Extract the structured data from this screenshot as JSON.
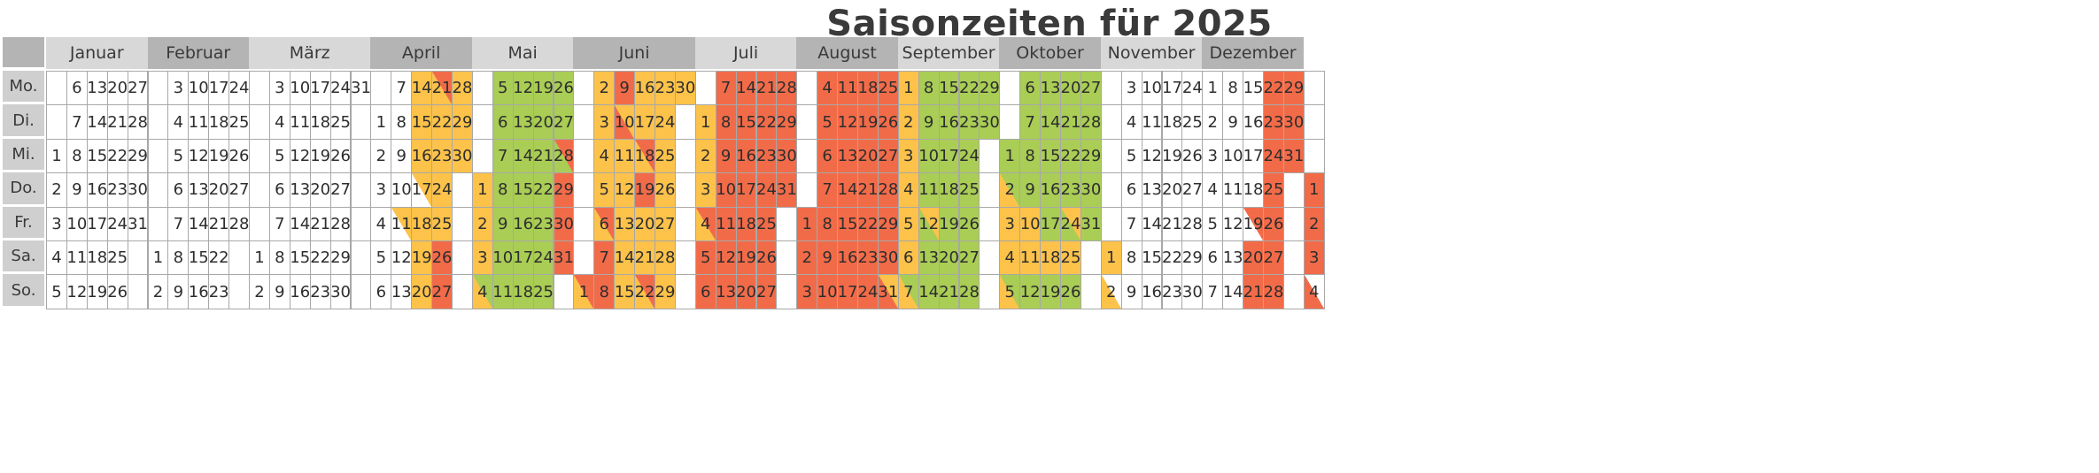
{
  "title": "Saisonzeiten für 2025",
  "day_labels": [
    "Mo.",
    "Di.",
    "Mi.",
    "Do.",
    "Fr.",
    "Sa.",
    "So."
  ],
  "colors": {
    "orange": "#f26b49",
    "yellow": "#fcc24a",
    "green": "#a9cd55",
    "white": "#ffffff",
    "header_dark": "#b4b4b4",
    "header_light": "#d8d8d8",
    "day_label_bg": "#cfcfcf",
    "grid_line": "#a8a8a8"
  },
  "months": [
    {
      "name": "Januar",
      "weeks": [
        [
          null,
          null,
          1,
          2,
          3,
          4,
          5
        ],
        [
          6,
          7,
          8,
          9,
          10,
          11,
          12
        ],
        [
          13,
          14,
          15,
          16,
          17,
          18,
          19
        ],
        [
          20,
          21,
          22,
          23,
          24,
          25,
          26
        ],
        [
          27,
          28,
          29,
          30,
          31,
          null,
          null
        ]
      ],
      "colors": []
    },
    {
      "name": "Februar",
      "weeks": [
        [
          null,
          null,
          null,
          null,
          null,
          1,
          2
        ],
        [
          3,
          4,
          5,
          6,
          7,
          8,
          9
        ],
        [
          10,
          11,
          12,
          13,
          14,
          15,
          16
        ],
        [
          17,
          18,
          19,
          20,
          21,
          22,
          23
        ],
        [
          24,
          25,
          26,
          27,
          28,
          null,
          null
        ]
      ],
      "colors": []
    },
    {
      "name": "März",
      "weeks": [
        [
          null,
          null,
          null,
          null,
          null,
          1,
          2
        ],
        [
          3,
          4,
          5,
          6,
          7,
          8,
          9
        ],
        [
          10,
          11,
          12,
          13,
          14,
          15,
          16
        ],
        [
          17,
          18,
          19,
          20,
          21,
          22,
          23
        ],
        [
          24,
          25,
          26,
          27,
          28,
          29,
          30
        ],
        [
          31,
          null,
          null,
          null,
          null,
          null,
          null
        ]
      ],
      "colors": []
    },
    {
      "name": "April",
      "weeks": [
        [
          null,
          1,
          2,
          3,
          4,
          5,
          6
        ],
        [
          7,
          8,
          9,
          10,
          11,
          12,
          13
        ],
        [
          14,
          15,
          16,
          17,
          18,
          19,
          20
        ],
        [
          21,
          22,
          23,
          24,
          25,
          26,
          27
        ],
        [
          28,
          29,
          30,
          null,
          null,
          null,
          null
        ]
      ],
      "colors": [
        [
          null,
          null,
          null,
          null,
          null,
          null,
          null
        ],
        [
          null,
          null,
          null,
          null,
          "W/Y",
          null,
          null
        ],
        [
          "Y",
          "Y",
          "Y",
          "W/Y",
          "Y",
          "Y",
          "Y"
        ],
        [
          "Y/O",
          "Y",
          "Y",
          "Y",
          "Y",
          "O",
          "O"
        ],
        [
          "Y",
          "Y",
          "Y",
          null,
          null,
          null,
          null
        ]
      ]
    },
    {
      "name": "Mai",
      "weeks": [
        [
          null,
          null,
          null,
          1,
          2,
          3,
          4
        ],
        [
          5,
          6,
          7,
          8,
          9,
          10,
          11
        ],
        [
          12,
          13,
          14,
          15,
          16,
          17,
          18
        ],
        [
          19,
          20,
          21,
          22,
          23,
          24,
          25
        ],
        [
          26,
          27,
          28,
          29,
          30,
          31,
          null
        ]
      ],
      "colors": [
        [
          null,
          null,
          null,
          "Y",
          "Y",
          "Y",
          "Y/G"
        ],
        [
          "G",
          "G",
          "G",
          "G",
          "G",
          "G",
          "G"
        ],
        [
          "G",
          "G",
          "G",
          "G",
          "G",
          "G",
          "G"
        ],
        [
          "G",
          "G",
          "G",
          "G",
          "G",
          "G",
          "G"
        ],
        [
          "G",
          "G",
          "G/O",
          "O",
          "O",
          "O",
          null
        ]
      ]
    },
    {
      "name": "Juni",
      "weeks": [
        [
          null,
          null,
          null,
          null,
          null,
          null,
          1
        ],
        [
          2,
          3,
          4,
          5,
          6,
          7,
          8
        ],
        [
          9,
          10,
          11,
          12,
          13,
          14,
          15
        ],
        [
          16,
          17,
          18,
          19,
          20,
          21,
          22
        ],
        [
          23,
          24,
          25,
          26,
          27,
          28,
          29
        ],
        [
          30,
          null,
          null,
          null,
          null,
          null,
          null
        ]
      ],
      "colors": [
        [
          null,
          null,
          null,
          null,
          null,
          null,
          "Y/O"
        ],
        [
          "Y",
          "Y",
          "Y",
          "Y",
          "Y/O",
          "O",
          "O"
        ],
        [
          "O",
          "O/Y",
          "Y",
          "Y",
          "Y",
          "Y",
          "Y"
        ],
        [
          "Y",
          "Y",
          "Y/O",
          "O",
          "Y",
          "Y",
          "Y/O"
        ],
        [
          "Y",
          "Y",
          "Y",
          "Y",
          "Y",
          "Y",
          "Y"
        ],
        [
          "Y",
          null,
          null,
          null,
          null,
          null,
          null
        ]
      ]
    },
    {
      "name": "Juli",
      "weeks": [
        [
          null,
          1,
          2,
          3,
          4,
          5,
          6
        ],
        [
          7,
          8,
          9,
          10,
          11,
          12,
          13
        ],
        [
          14,
          15,
          16,
          17,
          18,
          19,
          20
        ],
        [
          21,
          22,
          23,
          24,
          25,
          26,
          27
        ],
        [
          28,
          29,
          30,
          31,
          null,
          null,
          null
        ]
      ],
      "colors": [
        [
          null,
          "Y",
          "Y",
          "Y",
          "Y/O",
          "O",
          "O"
        ],
        [
          "O",
          "O",
          "O",
          "O",
          "O",
          "O",
          "O"
        ],
        [
          "O",
          "O",
          "O",
          "O",
          "O",
          "O",
          "O"
        ],
        [
          "O",
          "O",
          "O",
          "O",
          "O",
          "O",
          "O"
        ],
        [
          "O",
          "O",
          "O",
          "O",
          null,
          null,
          null
        ]
      ]
    },
    {
      "name": "August",
      "weeks": [
        [
          null,
          null,
          null,
          null,
          1,
          2,
          3
        ],
        [
          4,
          5,
          6,
          7,
          8,
          9,
          10
        ],
        [
          11,
          12,
          13,
          14,
          15,
          16,
          17
        ],
        [
          18,
          19,
          20,
          21,
          22,
          23,
          24
        ],
        [
          25,
          26,
          27,
          28,
          29,
          30,
          31
        ]
      ],
      "colors": [
        [
          null,
          null,
          null,
          null,
          "O",
          "O",
          "O"
        ],
        [
          "O",
          "O",
          "O",
          "O",
          "O",
          "O",
          "O"
        ],
        [
          "O",
          "O",
          "O",
          "O",
          "O",
          "O",
          "O"
        ],
        [
          "O",
          "O",
          "O",
          "O",
          "O",
          "O",
          "O"
        ],
        [
          "O",
          "O",
          "O",
          "O",
          "O",
          "O",
          "O/Y"
        ]
      ]
    },
    {
      "name": "September",
      "weeks": [
        [
          1,
          2,
          3,
          4,
          5,
          6,
          7
        ],
        [
          8,
          9,
          10,
          11,
          12,
          13,
          14
        ],
        [
          15,
          16,
          17,
          18,
          19,
          20,
          21
        ],
        [
          22,
          23,
          24,
          25,
          26,
          27,
          28
        ],
        [
          29,
          30,
          null,
          null,
          null,
          null,
          null
        ]
      ],
      "colors": [
        [
          "Y",
          "Y",
          "Y",
          "Y",
          "Y",
          "Y",
          "Y/G"
        ],
        [
          "G",
          "G",
          "G",
          "G",
          "G/Y",
          "G",
          "G"
        ],
        [
          "G",
          "G",
          "G",
          "G",
          "G",
          "G",
          "G"
        ],
        [
          "G",
          "G",
          "G",
          "G",
          "G",
          "G",
          "G"
        ],
        [
          "G",
          "G",
          null,
          null,
          null,
          null,
          null
        ]
      ]
    },
    {
      "name": "Oktober",
      "weeks": [
        [
          null,
          null,
          1,
          2,
          3,
          4,
          5
        ],
        [
          6,
          7,
          8,
          9,
          10,
          11,
          12
        ],
        [
          13,
          14,
          15,
          16,
          17,
          18,
          19
        ],
        [
          20,
          21,
          22,
          23,
          24,
          25,
          26
        ],
        [
          27,
          28,
          29,
          30,
          31,
          null,
          null
        ]
      ],
      "colors": [
        [
          null,
          null,
          "G",
          "Y/G",
          "Y",
          "Y",
          "Y/G"
        ],
        [
          "G",
          "G",
          "G",
          "G",
          "Y",
          "Y",
          "G"
        ],
        [
          "G",
          "G",
          "G",
          "G",
          "G",
          "Y",
          "G"
        ],
        [
          "G",
          "G",
          "G",
          "G",
          "G/Y",
          "Y",
          "G"
        ],
        [
          "G",
          "G",
          "G",
          "G",
          "G",
          null,
          null
        ]
      ]
    },
    {
      "name": "November",
      "weeks": [
        [
          null,
          null,
          null,
          null,
          null,
          1,
          2
        ],
        [
          3,
          4,
          5,
          6,
          7,
          8,
          9
        ],
        [
          10,
          11,
          12,
          13,
          14,
          15,
          16
        ],
        [
          17,
          18,
          19,
          20,
          21,
          22,
          23
        ],
        [
          24,
          25,
          26,
          27,
          28,
          29,
          30
        ]
      ],
      "colors": [
        [
          null,
          null,
          null,
          null,
          null,
          "Y",
          "Y/W"
        ],
        [
          null,
          null,
          null,
          null,
          null,
          null,
          null
        ],
        [
          null,
          null,
          null,
          null,
          null,
          null,
          null
        ],
        [
          null,
          null,
          null,
          null,
          null,
          null,
          null
        ],
        [
          null,
          null,
          null,
          null,
          null,
          null,
          null
        ]
      ]
    },
    {
      "name": "Dezember",
      "weeks": [
        [
          1,
          2,
          3,
          4,
          5,
          6,
          7
        ],
        [
          8,
          9,
          10,
          11,
          12,
          13,
          14
        ],
        [
          15,
          16,
          17,
          18,
          19,
          20,
          21
        ],
        [
          22,
          23,
          24,
          25,
          26,
          27,
          28
        ],
        [
          29,
          30,
          31,
          null,
          null,
          null,
          null
        ]
      ],
      "colors": [
        [
          null,
          null,
          null,
          null,
          null,
          null,
          null
        ],
        [
          null,
          null,
          null,
          null,
          null,
          null,
          null
        ],
        [
          null,
          null,
          null,
          null,
          "W/O",
          "O",
          "O"
        ],
        [
          "O",
          "O",
          "O",
          "O",
          "O",
          "O",
          "O"
        ],
        [
          "O",
          "O",
          "O",
          null,
          null,
          null,
          null
        ]
      ]
    }
  ],
  "next_year_partial": {
    "days": [
      null,
      null,
      null,
      1,
      2,
      3,
      4
    ],
    "colors": [
      null,
      null,
      null,
      "O",
      "O",
      "O",
      "O/W"
    ]
  }
}
